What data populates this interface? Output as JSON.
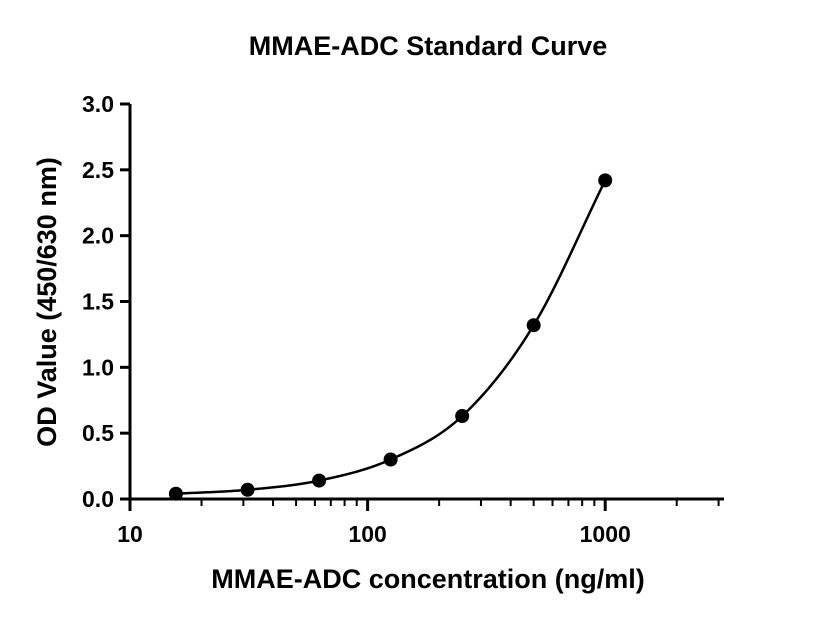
{
  "chart_data": {
    "type": "scatter",
    "title": "MMAE-ADC Standard Curve",
    "xlabel": "MMAE-ADC concentration (ng/ml)",
    "ylabel": "OD Value (450/630 nm)",
    "x_scale": "log",
    "xlim": [
      10,
      3162
    ],
    "ylim": [
      0,
      3.0
    ],
    "x_ticks": [
      10,
      100,
      1000
    ],
    "x_tick_labels": [
      "10",
      "100",
      "1000"
    ],
    "y_ticks": [
      0,
      0.5,
      1.0,
      1.5,
      2.0,
      2.5,
      3.0
    ],
    "y_tick_labels": [
      "0.0",
      "0.5",
      "1.0",
      "1.5",
      "2.0",
      "2.5",
      "3.0"
    ],
    "grid": false,
    "legend": false,
    "series": [
      {
        "marker": "circle",
        "color": "#000000",
        "fit_curve": true,
        "x": [
          15.6,
          31.25,
          62.5,
          125,
          250,
          500,
          1000
        ],
        "y": [
          0.04,
          0.07,
          0.14,
          0.3,
          0.63,
          1.32,
          2.42
        ]
      }
    ]
  }
}
